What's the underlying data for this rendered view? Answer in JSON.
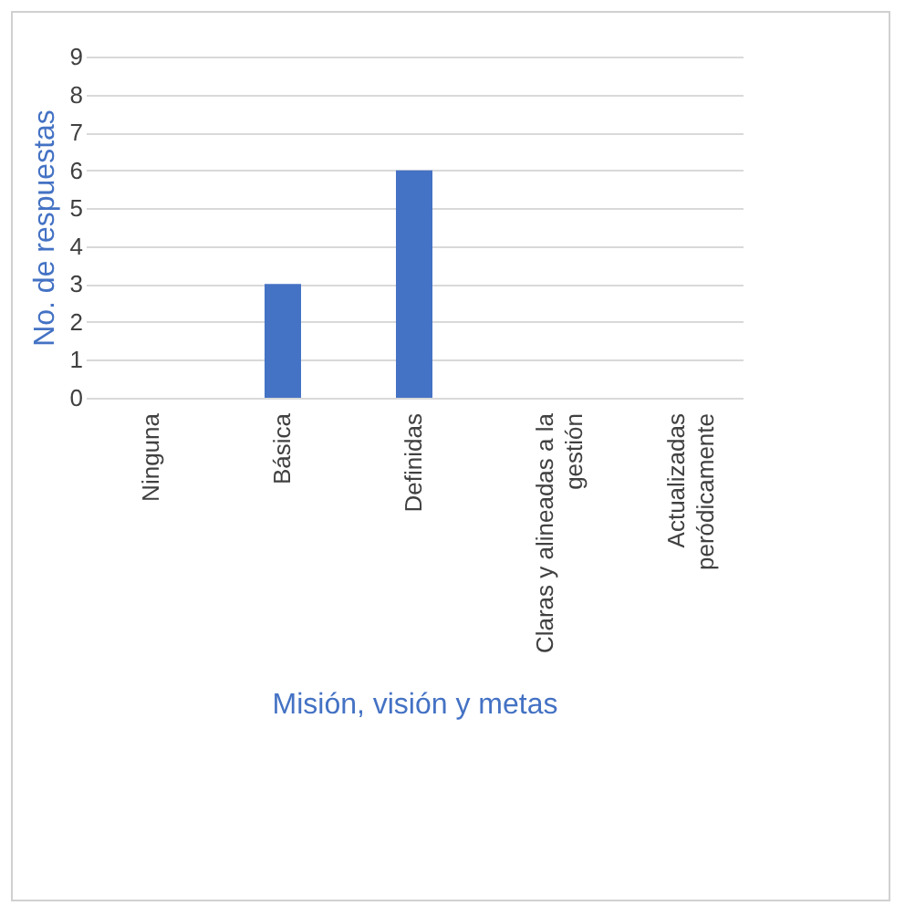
{
  "chart_data": {
    "type": "bar",
    "xlabel": "Misión, visión y metas",
    "ylabel": "No. de respuestas",
    "categories": [
      "Ninguna",
      "Básica",
      "Definidas",
      "Claras y alineadas a la gestión",
      "Actualizadas peródicamente"
    ],
    "values": [
      0,
      3,
      6,
      0,
      0
    ],
    "color": "#4472c4",
    "ylim": [
      0,
      9
    ],
    "yticks": [
      0,
      1,
      2,
      3,
      4,
      5,
      6,
      7,
      8,
      9
    ],
    "grid": "y"
  }
}
